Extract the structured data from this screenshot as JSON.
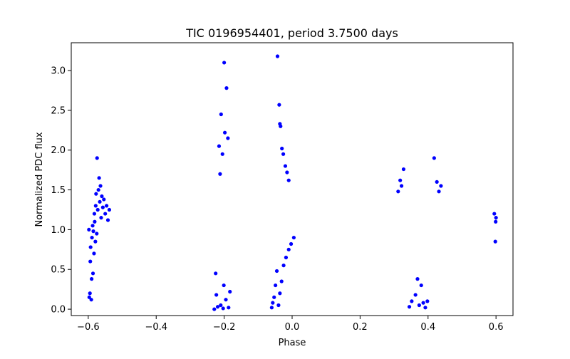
{
  "chart_data": {
    "type": "scatter",
    "title": "TIC 0196954401, period 3.7500 days",
    "xlabel": "Phase",
    "ylabel": "Normalized PDC flux",
    "xlim": [
      -0.65,
      0.65
    ],
    "ylim": [
      -0.08,
      3.35
    ],
    "xticks": [
      -0.6,
      -0.4,
      -0.2,
      0.0,
      0.2,
      0.4,
      0.6
    ],
    "xtick_labels": [
      "−0.6",
      "−0.4",
      "−0.2",
      "0.0",
      "0.2",
      "0.4",
      "0.6"
    ],
    "yticks": [
      0.0,
      0.5,
      1.0,
      1.5,
      2.0,
      2.5,
      3.0
    ],
    "ytick_labels": [
      "0.0",
      "0.5",
      "1.0",
      "1.5",
      "2.0",
      "2.5",
      "3.0"
    ],
    "grid": false,
    "legend": "none",
    "marker_color": "#0000ff",
    "series": [
      {
        "values": [
          [
            -0.598,
            1.0
          ],
          [
            -0.597,
            0.15
          ],
          [
            -0.595,
            0.2
          ],
          [
            -0.594,
            0.6
          ],
          [
            -0.593,
            0.78
          ],
          [
            -0.591,
            0.12
          ],
          [
            -0.59,
            0.38
          ],
          [
            -0.589,
            0.9
          ],
          [
            -0.587,
            1.05
          ],
          [
            -0.586,
            0.45
          ],
          [
            -0.585,
            0.98
          ],
          [
            -0.583,
            0.7
          ],
          [
            -0.582,
            1.2
          ],
          [
            -0.581,
            1.1
          ],
          [
            -0.579,
            0.85
          ],
          [
            -0.578,
            1.3
          ],
          [
            -0.577,
            1.45
          ],
          [
            -0.575,
            0.95
          ],
          [
            -0.574,
            1.9
          ],
          [
            -0.572,
            1.25
          ],
          [
            -0.57,
            1.5
          ],
          [
            -0.568,
            1.65
          ],
          [
            -0.566,
            1.35
          ],
          [
            -0.564,
            1.55
          ],
          [
            -0.562,
            1.15
          ],
          [
            -0.56,
            1.42
          ],
          [
            -0.557,
            1.28
          ],
          [
            -0.554,
            1.38
          ],
          [
            -0.55,
            1.2
          ],
          [
            -0.546,
            1.3
          ],
          [
            -0.542,
            1.12
          ],
          [
            -0.538,
            1.25
          ],
          [
            -0.209,
            2.45
          ],
          [
            -0.2,
            3.1
          ],
          [
            -0.198,
            2.22
          ],
          [
            -0.193,
            2.78
          ],
          [
            -0.189,
            2.15
          ],
          [
            -0.215,
            2.05
          ],
          [
            -0.205,
            1.95
          ],
          [
            -0.212,
            1.7
          ],
          [
            -0.229,
            0.0
          ],
          [
            -0.223,
            0.18
          ],
          [
            -0.219,
            0.03
          ],
          [
            -0.21,
            0.05
          ],
          [
            -0.203,
            0.01
          ],
          [
            -0.195,
            0.12
          ],
          [
            -0.187,
            0.02
          ],
          [
            -0.225,
            0.45
          ],
          [
            -0.201,
            0.3
          ],
          [
            -0.183,
            0.22
          ],
          [
            -0.06,
            0.02
          ],
          [
            -0.057,
            0.08
          ],
          [
            -0.053,
            0.15
          ],
          [
            -0.049,
            0.3
          ],
          [
            -0.045,
            0.48
          ],
          [
            -0.04,
            0.05
          ],
          [
            -0.036,
            0.2
          ],
          [
            -0.031,
            0.35
          ],
          [
            -0.025,
            0.55
          ],
          [
            -0.018,
            0.65
          ],
          [
            -0.01,
            0.75
          ],
          [
            -0.003,
            0.82
          ],
          [
            0.005,
            0.9
          ],
          [
            -0.043,
            3.18
          ],
          [
            -0.038,
            2.57
          ],
          [
            -0.036,
            2.33
          ],
          [
            -0.034,
            2.3
          ],
          [
            -0.03,
            2.02
          ],
          [
            -0.026,
            1.95
          ],
          [
            -0.02,
            1.8
          ],
          [
            -0.015,
            1.72
          ],
          [
            -0.01,
            1.62
          ],
          [
            0.328,
            1.76
          ],
          [
            0.322,
            1.55
          ],
          [
            0.318,
            1.62
          ],
          [
            0.312,
            1.48
          ],
          [
            0.345,
            0.03
          ],
          [
            0.352,
            0.1
          ],
          [
            0.363,
            0.18
          ],
          [
            0.374,
            0.05
          ],
          [
            0.386,
            0.08
          ],
          [
            0.392,
            0.02
          ],
          [
            0.398,
            0.1
          ],
          [
            0.38,
            0.3
          ],
          [
            0.369,
            0.38
          ],
          [
            0.418,
            1.9
          ],
          [
            0.426,
            1.6
          ],
          [
            0.432,
            1.48
          ],
          [
            0.438,
            1.55
          ],
          [
            0.595,
            1.2
          ],
          [
            0.598,
            0.85
          ],
          [
            0.599,
            1.1
          ],
          [
            0.6,
            1.15
          ]
        ]
      }
    ]
  }
}
